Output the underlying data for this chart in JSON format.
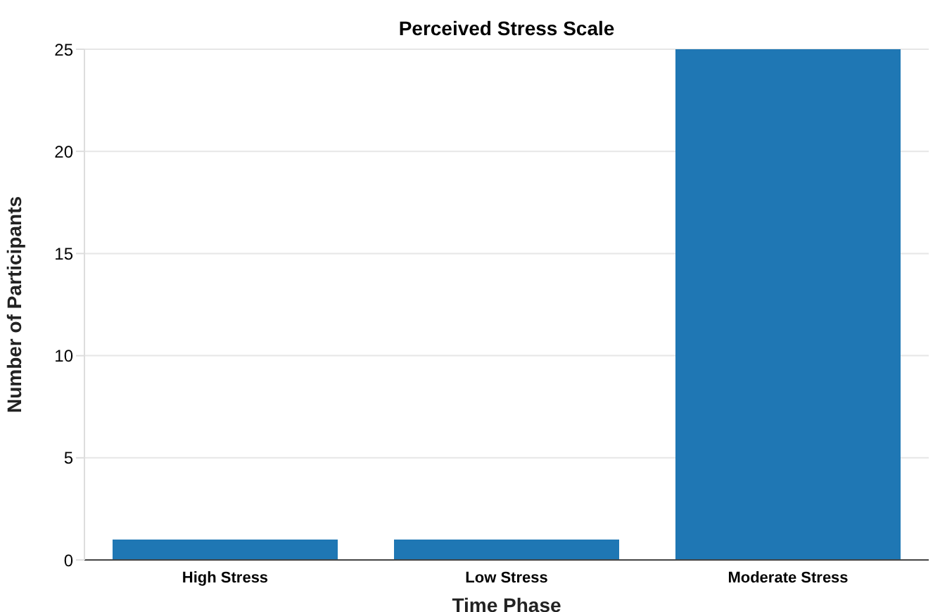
{
  "chart_data": {
    "type": "bar",
    "title": "Perceived Stress Scale",
    "xlabel": "Time Phase",
    "ylabel": "Number of Participants",
    "categories": [
      "High Stress",
      "Low Stress",
      "Moderate Stress"
    ],
    "values": [
      1,
      1,
      25
    ],
    "color": "#1f77b4",
    "ylim": [
      0,
      25
    ],
    "yticks": [
      0,
      5,
      10,
      15,
      20,
      25
    ],
    "grid": "y"
  }
}
